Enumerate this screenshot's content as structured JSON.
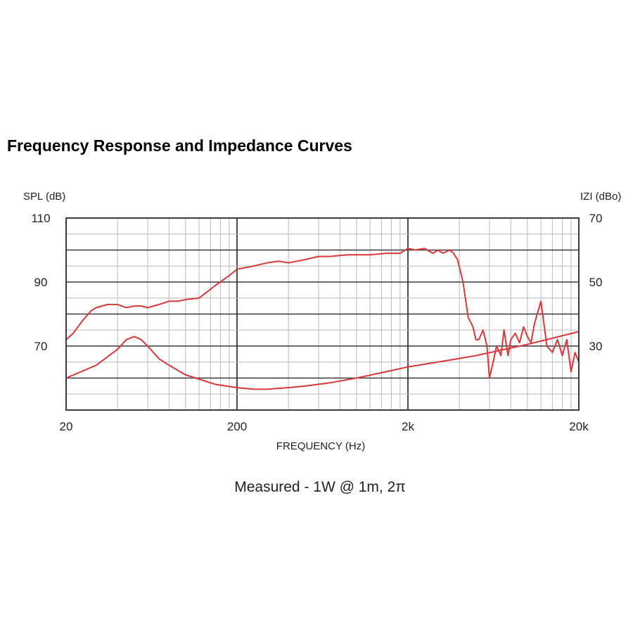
{
  "title": "Frequency Response and Impedance Curves",
  "colors": {
    "curve": "#d9373a",
    "grid_minor": "#b9b9b9",
    "grid_major": "#3a3a3a",
    "text": "#222222"
  },
  "chart_data": {
    "type": "line",
    "xlabel": "FREQUENCY (Hz)",
    "ylabel_left": "SPL (dB)",
    "ylabel_right": "IZI (dBo)",
    "caption": "Measured - 1W @ 1m, 2π",
    "x_scale": "log",
    "xlim": [
      20,
      20000
    ],
    "ylim_left": [
      50,
      110
    ],
    "ylim_right": [
      10,
      70
    ],
    "x_ticks": [
      {
        "value": 20,
        "label": "20"
      },
      {
        "value": 200,
        "label": "200"
      },
      {
        "value": 2000,
        "label": "2k"
      },
      {
        "value": 20000,
        "label": "20k"
      }
    ],
    "y_ticks_left": [
      {
        "value": 110,
        "label": "110"
      },
      {
        "value": 90,
        "label": "90"
      },
      {
        "value": 70,
        "label": "70"
      }
    ],
    "y_ticks_right": [
      {
        "value": 70,
        "label": "70"
      },
      {
        "value": 50,
        "label": "50"
      },
      {
        "value": 30,
        "label": "30"
      }
    ],
    "grid": true,
    "series": [
      {
        "axis": "left",
        "x": [
          20,
          22,
          25,
          28,
          30,
          35,
          40,
          45,
          50,
          55,
          60,
          70,
          80,
          90,
          100,
          120,
          150,
          180,
          200,
          250,
          300,
          350,
          400,
          500,
          600,
          700,
          800,
          900,
          1000,
          1200,
          1500,
          1800,
          2000,
          2200,
          2500,
          2800,
          3000,
          3200,
          3500,
          3700,
          3900,
          4200,
          4500,
          4800,
          5000,
          5200,
          5500,
          5800,
          6000,
          6300,
          6600,
          7000,
          7300,
          7700,
          8000,
          8500,
          9000,
          9500,
          10000,
          10500,
          11000,
          12000,
          13000,
          14000,
          15000,
          16000,
          17000,
          18000,
          19000,
          20000
        ],
        "values": [
          72,
          74,
          78,
          81,
          82,
          83,
          83,
          82,
          82.5,
          82.5,
          82,
          83,
          84,
          84,
          84.5,
          85,
          89,
          92,
          94,
          95,
          96,
          96.5,
          96,
          97,
          98,
          98,
          98.3,
          98.5,
          98.5,
          98.5,
          99,
          99,
          100.5,
          100,
          100.5,
          99,
          100,
          99,
          100,
          99,
          97,
          90,
          79,
          76,
          72,
          72,
          75,
          70,
          60,
          65,
          70,
          67,
          75,
          67,
          72,
          74,
          71,
          76,
          73,
          71,
          77,
          84,
          70,
          68,
          72,
          67,
          72,
          62,
          68,
          65
        ]
      },
      {
        "axis": "right",
        "x": [
          20,
          30,
          40,
          45,
          50,
          55,
          60,
          70,
          80,
          100,
          150,
          200,
          250,
          300,
          400,
          500,
          700,
          1000,
          1500,
          2000,
          3000,
          5000,
          10000,
          20000
        ],
        "values": [
          20,
          24,
          29,
          32,
          33,
          32,
          30,
          26,
          24,
          21,
          18,
          17,
          16.5,
          16.5,
          17,
          17.5,
          18.5,
          20,
          22,
          23.5,
          25,
          27,
          30.5,
          34.5
        ]
      }
    ]
  }
}
